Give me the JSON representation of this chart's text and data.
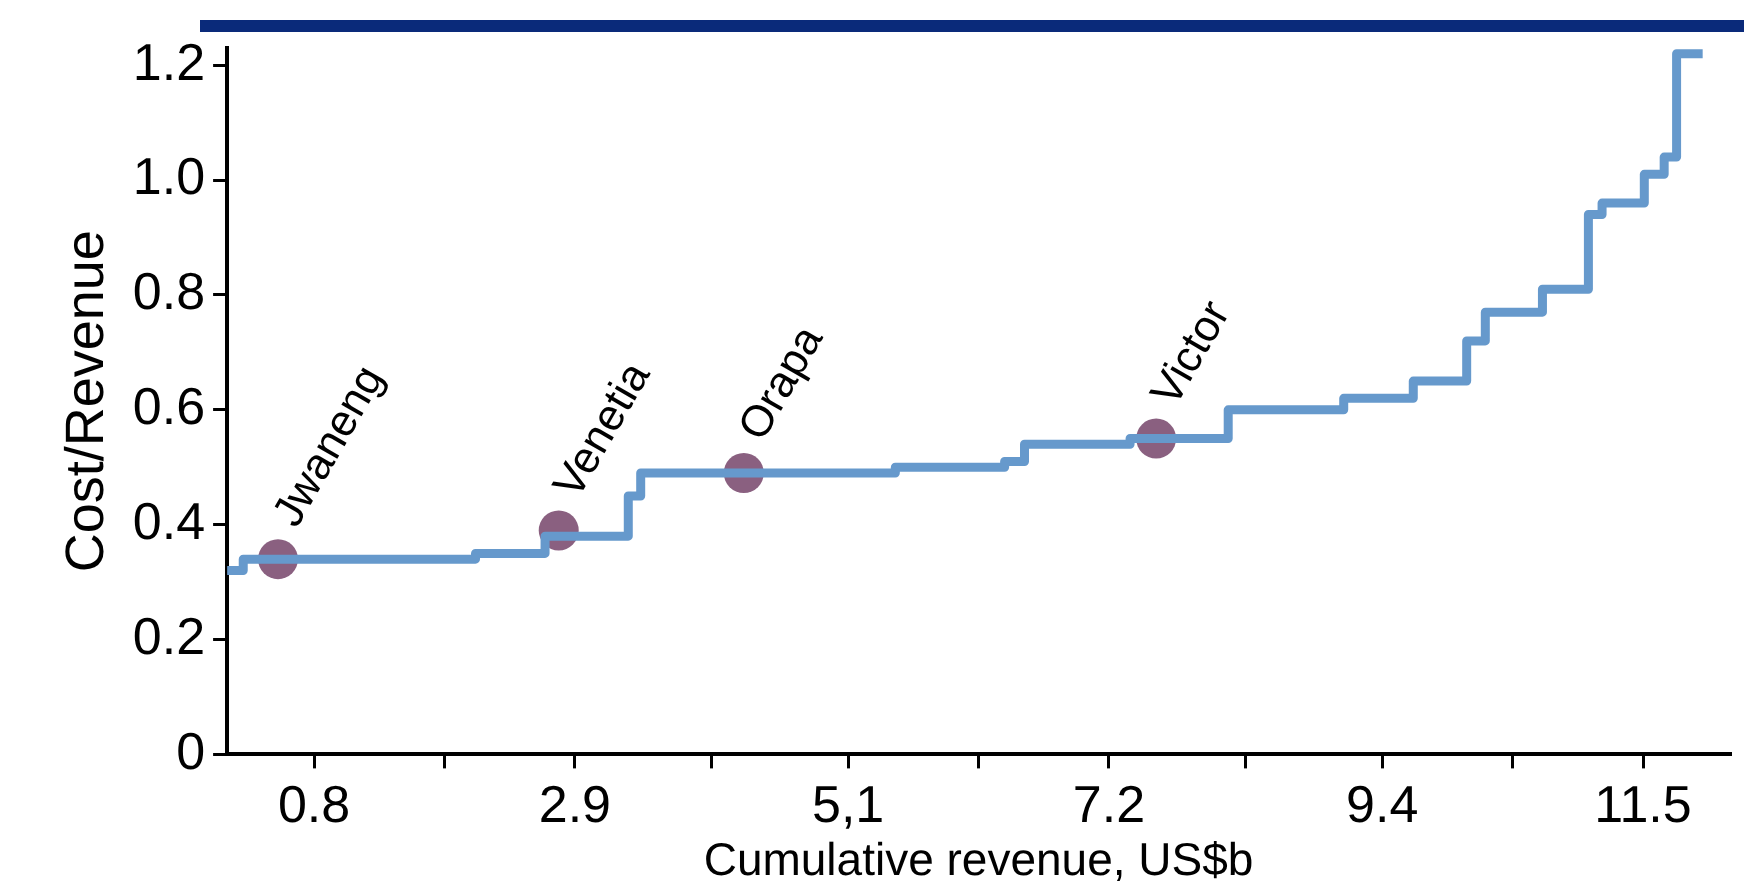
{
  "chart_data": {
    "type": "step",
    "xlabel": "Cumulative revenue, US$b",
    "ylabel": "Cost/Revenue",
    "xlim": [
      0.1,
      12.2
    ],
    "xticks": [
      0.8,
      {
        "value": 1.85,
        "label": null
      },
      2.9,
      {
        "value": 4.0,
        "label": null
      },
      {
        "value": 5.1,
        "label": "5,1"
      },
      {
        "value": 6.15,
        "label": null
      },
      7.2,
      {
        "value": 8.3,
        "label": null
      },
      9.4,
      {
        "value": 10.45,
        "label": null
      },
      11.5
    ],
    "ylim": [
      0,
      1.23
    ],
    "yticks": [
      0,
      0.2,
      0.4,
      0.6,
      0.8,
      {
        "value": 1,
        "label": "1.0"
      },
      1.2
    ],
    "grid": false,
    "legend": false,
    "series": [
      {
        "color": "#6699cc",
        "x": [
          0.1,
          0.23,
          2.1,
          2.66,
          3.33,
          3.43,
          5.48,
          6.36,
          6.52,
          7.37,
          8.16,
          9.09,
          9.65,
          10.08,
          10.23,
          10.69,
          11.06,
          11.17,
          11.51,
          11.67,
          11.77,
          11.98
        ],
        "values": [
          0.32,
          0.34,
          0.35,
          0.38,
          0.45,
          0.49,
          0.5,
          0.51,
          0.54,
          0.55,
          0.6,
          0.62,
          0.65,
          0.72,
          0.77,
          0.81,
          0.94,
          0.96,
          1.01,
          1.04,
          1.22,
          1.22
        ]
      },
      {
        "type": "scatter",
        "color": "#8a6080",
        "marker": "circle",
        "x": [
          0.51,
          2.77,
          4.26,
          7.58
        ],
        "values": [
          0.34,
          0.39,
          0.49,
          0.55
        ]
      }
    ],
    "annotations": [
      {
        "text": "Jwaneng",
        "x": 0.51,
        "y": 0.34
      },
      {
        "text": "Venetia",
        "x": 2.77,
        "y": 0.39
      },
      {
        "text": "Orapa",
        "x": 4.26,
        "y": 0.49
      },
      {
        "text": "Victor",
        "x": 7.58,
        "y": 0.55
      }
    ]
  }
}
